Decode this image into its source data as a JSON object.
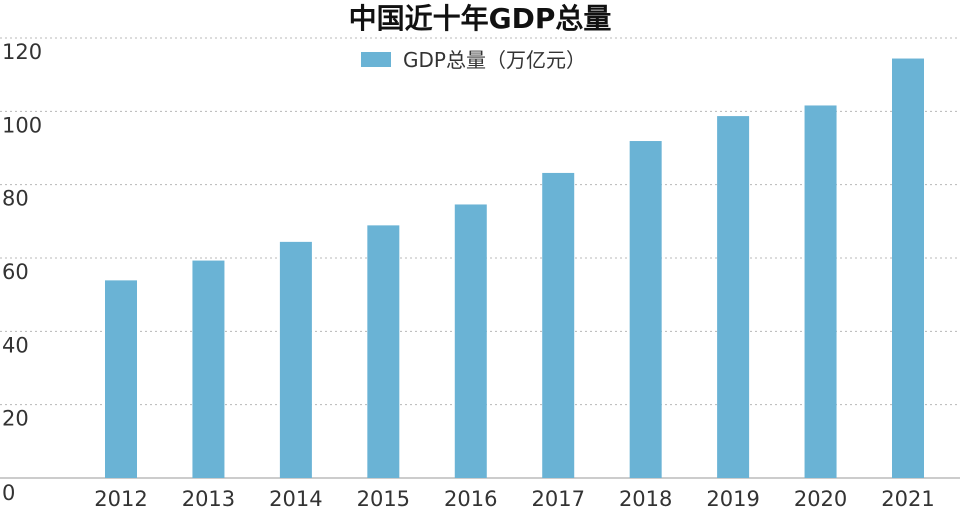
{
  "chart_data": {
    "type": "bar",
    "title": "中国近十年GDP总量",
    "categories": [
      "2012",
      "2013",
      "2014",
      "2015",
      "2016",
      "2017",
      "2018",
      "2019",
      "2020",
      "2021"
    ],
    "series": [
      {
        "name": "GDP总量（万亿元）",
        "color": "#6ab3d5",
        "values": [
          53.9,
          59.3,
          64.4,
          68.9,
          74.6,
          83.2,
          91.9,
          98.7,
          101.6,
          114.4
        ]
      }
    ],
    "y_ticks": [
      "0",
      "20",
      "40",
      "60",
      "80",
      "100",
      "120"
    ],
    "ylim": [
      0,
      120
    ],
    "xlabel": "",
    "ylabel": "",
    "grid": true,
    "legend_position": "top-center"
  }
}
